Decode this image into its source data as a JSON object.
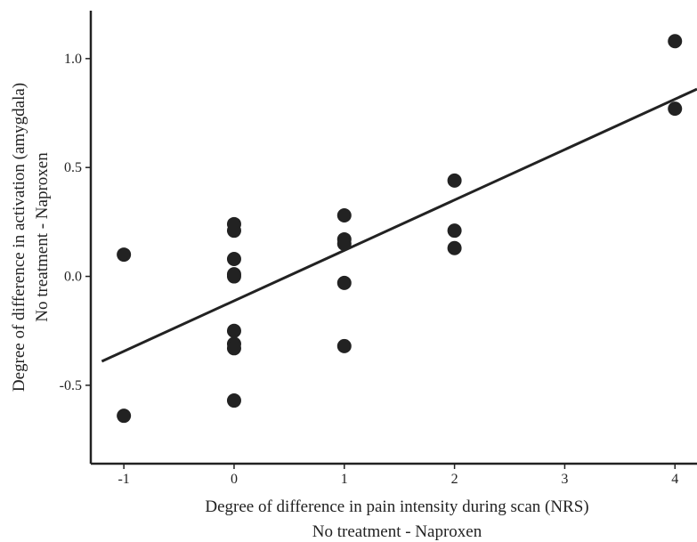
{
  "chart_data": {
    "type": "scatter",
    "xlabel": "Degree of difference in pain intensity during scan (NRS)",
    "xlabel_line2": "No treatment - Naproxen",
    "ylabel": "Degree of difference in activation (amygdala)",
    "ylabel_line2": "No treatment - Naproxen",
    "xlim": [
      -1.3,
      4.2
    ],
    "ylim": [
      -0.86,
      1.22
    ],
    "x_ticks": [
      -1,
      0,
      1,
      2,
      3,
      4
    ],
    "y_ticks": [
      -0.5,
      0.0,
      0.5,
      1.0
    ],
    "x_tick_labels": [
      "-1",
      "0",
      "1",
      "2",
      "3",
      "4"
    ],
    "y_tick_labels": [
      "-0.5",
      "0.0",
      "0.5",
      "1.0"
    ],
    "grid": false,
    "series": [
      {
        "x": [
          -1,
          -1,
          0,
          0,
          0,
          0,
          0,
          0,
          0,
          0,
          0,
          1,
          1,
          1,
          1,
          1,
          2,
          2,
          2,
          4,
          4
        ],
        "y": [
          0.1,
          -0.64,
          0.24,
          0.21,
          0.08,
          0.01,
          0.0,
          -0.25,
          -0.31,
          -0.33,
          -0.57,
          0.28,
          0.17,
          0.15,
          -0.03,
          -0.32,
          0.44,
          0.21,
          0.13,
          1.08,
          0.77
        ]
      }
    ],
    "fit_line": {
      "x": [
        -1.2,
        4.2
      ],
      "y": [
        -0.39,
        0.86
      ]
    }
  }
}
